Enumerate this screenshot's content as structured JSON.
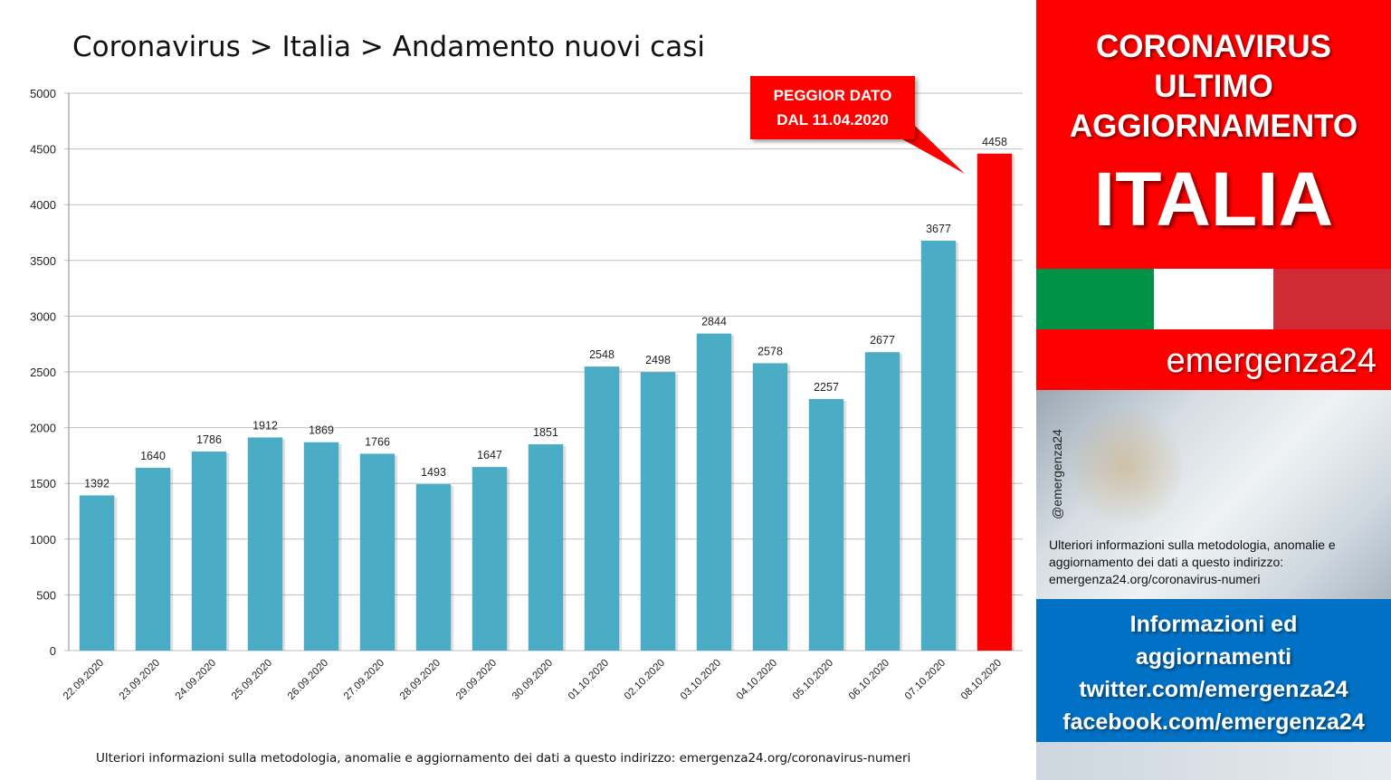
{
  "chart_data": {
    "type": "bar",
    "title": "Coronavirus > Italia > Andamento nuovi casi",
    "categories": [
      "22.09.2020",
      "23.09.2020",
      "24.09.2020",
      "25.09.2020",
      "26.09.2020",
      "27.09.2020",
      "28.09.2020",
      "29.09.2020",
      "30.09.2020",
      "01.10.2020",
      "02.10.2020",
      "03.10.2020",
      "04.10.2020",
      "05.10.2020",
      "06.10.2020",
      "07.10.2020",
      "08.10.2020"
    ],
    "values": [
      1392,
      1640,
      1786,
      1912,
      1869,
      1766,
      1493,
      1647,
      1851,
      2548,
      2498,
      2844,
      2578,
      2257,
      2677,
      3677,
      4458
    ],
    "ylim": [
      0,
      5000
    ],
    "yticks": [
      0,
      500,
      1000,
      1500,
      2000,
      2500,
      3000,
      3500,
      4000,
      4500,
      5000
    ],
    "grid": true,
    "bar_color": "#4bacc6",
    "highlight_color": "#ff0000",
    "highlight_index": 16,
    "annotation": {
      "line1": "PEGGIOR DATO",
      "line2": "DAL 11.04.2020"
    }
  },
  "footnote": "Ulteriori informazioni sulla metodologia, anomalie e aggiornamento dei dati a questo indirizzo: emergenza24.org/coronavirus-numeri",
  "sidebar": {
    "headline": [
      "CORONAVIRUS",
      "ULTIMO",
      "AGGIORNAMENTO"
    ],
    "country": "ITALIA",
    "flag_colors": [
      "#009246",
      "#ffffff",
      "#ce2b37"
    ],
    "brand": "emergenza24",
    "handle": "@emergenza24",
    "info_text": "Ulteriori informazioni sulla metodologia, anomalie e aggiornamento dei dati a questo indirizzo: emergenza24.org/coronavirus-numeri",
    "links": [
      "Informazioni ed",
      "aggiornamenti",
      "twitter.com/emergenza24",
      "facebook.com/emergenza24"
    ]
  }
}
